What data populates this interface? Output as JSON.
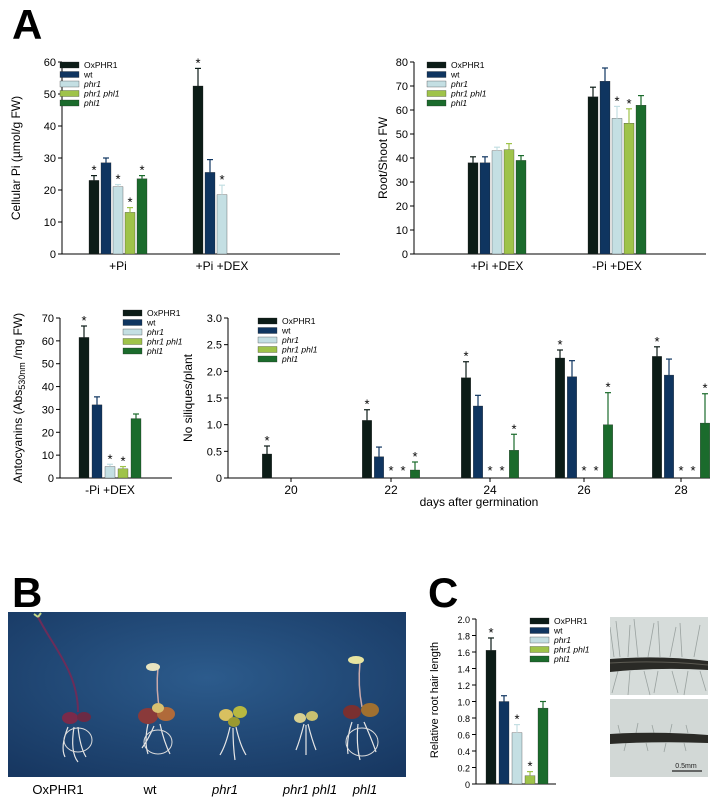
{
  "panels": {
    "a": "A",
    "b": "B",
    "c": "C"
  },
  "colors": {
    "OxPHR1": "#0c1c17",
    "wt": "#0f3560",
    "phr1": "#c4dfe3",
    "phr1 phl1": "#9fc34a",
    "phl1": "#1b6b2c"
  },
  "legend": [
    {
      "label": "OxPHR1",
      "italic": false
    },
    {
      "label": "wt",
      "italic": false
    },
    {
      "label": "phr1",
      "italic": true
    },
    {
      "label": "phr1 phl1",
      "italic": true
    },
    {
      "label": "phl1",
      "italic": true
    }
  ],
  "significance_mark": "*",
  "chart_data": [
    {
      "type": "bar",
      "ylabel": "Cellular Pi (µmol/g FW)",
      "ylim": [
        0,
        60
      ],
      "yticks": [
        0,
        10,
        20,
        30,
        40,
        50,
        60
      ],
      "categories": [
        "+Pi",
        "+Pi +DEX"
      ],
      "series": [
        {
          "name": "OxPHR1",
          "values": [
            23,
            52.5
          ],
          "errors": [
            1.5,
            5.5
          ],
          "sig": [
            true,
            true
          ]
        },
        {
          "name": "wt",
          "values": [
            28.5,
            25.5
          ],
          "errors": [
            1.5,
            4
          ],
          "sig": [
            false,
            false
          ]
        },
        {
          "name": "phr1",
          "values": [
            21,
            18.5
          ],
          "errors": [
            0.7,
            3
          ],
          "sig": [
            true,
            true
          ]
        },
        {
          "name": "phr1 phl1",
          "values": [
            13,
            null
          ],
          "errors": [
            1.5,
            null
          ],
          "sig": [
            true,
            false
          ]
        },
        {
          "name": "phl1",
          "values": [
            23.5,
            null
          ],
          "errors": [
            1,
            null
          ],
          "sig": [
            true,
            false
          ]
        }
      ],
      "legend_position": "top-left"
    },
    {
      "type": "bar",
      "ylabel": "Root/Shoot FW",
      "ylim": [
        0,
        80
      ],
      "yticks": [
        0,
        10,
        20,
        30,
        40,
        50,
        60,
        70,
        80
      ],
      "categories": [
        "+Pi +DEX",
        "-Pi +DEX"
      ],
      "series": [
        {
          "name": "OxPHR1",
          "values": [
            38,
            65.5
          ],
          "errors": [
            2.5,
            4
          ],
          "sig": [
            false,
            false
          ]
        },
        {
          "name": "wt",
          "values": [
            38,
            72
          ],
          "errors": [
            2.5,
            5.5
          ],
          "sig": [
            false,
            false
          ]
        },
        {
          "name": "phr1",
          "values": [
            43,
            56.5
          ],
          "errors": [
            1.5,
            5
          ],
          "sig": [
            false,
            true
          ]
        },
        {
          "name": "phr1 phl1",
          "values": [
            43.5,
            54.5
          ],
          "errors": [
            2.5,
            6
          ],
          "sig": [
            false,
            true
          ]
        },
        {
          "name": "phl1",
          "values": [
            39,
            62
          ],
          "errors": [
            2,
            4
          ],
          "sig": [
            false,
            false
          ]
        }
      ],
      "legend_position": "top-left"
    },
    {
      "type": "bar",
      "ylabel": "Antocyanins (Abs530nm /mg FW)",
      "ylabel_main": "Antocyanins (Abs",
      "ylabel_sub": "530nm",
      "ylabel_end": " /mg FW)",
      "ylim": [
        0,
        70
      ],
      "yticks": [
        0,
        10,
        20,
        30,
        40,
        50,
        60,
        70
      ],
      "categories": [
        "-Pi +DEX"
      ],
      "series": [
        {
          "name": "OxPHR1",
          "values": [
            61.5
          ],
          "errors": [
            5
          ],
          "sig": [
            true
          ]
        },
        {
          "name": "wt",
          "values": [
            32
          ],
          "errors": [
            3.5
          ],
          "sig": [
            false
          ]
        },
        {
          "name": "phr1",
          "values": [
            5
          ],
          "errors": [
            1
          ],
          "sig": [
            true
          ]
        },
        {
          "name": "phr1 phl1",
          "values": [
            4
          ],
          "errors": [
            1
          ],
          "sig": [
            true
          ]
        },
        {
          "name": "phl1",
          "values": [
            26
          ],
          "errors": [
            2
          ],
          "sig": [
            false
          ]
        }
      ],
      "legend_position": "top-right"
    },
    {
      "type": "bar",
      "ylabel": "No siliques/plant",
      "xlabel": "days after germination",
      "ylim": [
        0,
        3.0
      ],
      "yticks": [
        "0",
        "0.5",
        "1.0",
        "1.5",
        "2.0",
        "2.5",
        "3.0"
      ],
      "categories": [
        "20",
        "22",
        "24",
        "26",
        "28"
      ],
      "series": [
        {
          "name": "OxPHR1",
          "values": [
            0.45,
            1.08,
            1.88,
            2.25,
            2.28
          ],
          "errors": [
            0.15,
            0.2,
            0.3,
            0.15,
            0.18
          ],
          "sig": [
            true,
            true,
            true,
            true,
            true
          ]
        },
        {
          "name": "wt",
          "values": [
            0,
            0.4,
            1.35,
            1.9,
            1.93
          ],
          "errors": [
            0,
            0.18,
            0.2,
            0.3,
            0.3
          ],
          "sig": [
            false,
            false,
            false,
            false,
            false
          ]
        },
        {
          "name": "phr1",
          "values": [
            0,
            0,
            0,
            0,
            0
          ],
          "errors": [
            0,
            0,
            0,
            0,
            0
          ],
          "sig": [
            false,
            true,
            true,
            true,
            true
          ]
        },
        {
          "name": "phr1 phl1",
          "values": [
            0,
            0,
            0,
            0,
            0
          ],
          "errors": [
            0,
            0,
            0,
            0,
            0
          ],
          "sig": [
            false,
            true,
            true,
            true,
            true
          ]
        },
        {
          "name": "phl1",
          "values": [
            0,
            0.15,
            0.52,
            1.0,
            1.03
          ],
          "errors": [
            0,
            0.15,
            0.3,
            0.6,
            0.55
          ],
          "sig": [
            false,
            true,
            true,
            true,
            true
          ]
        }
      ],
      "legend_position": "top-left"
    },
    {
      "type": "bar",
      "ylabel": "Relative root hair length",
      "ylim": [
        0,
        2.0
      ],
      "yticks": [
        "0",
        "0.2",
        "0.4",
        "0.6",
        "0.8",
        "1.0",
        "1.2",
        "1.4",
        "1.6",
        "1.8",
        "2.0"
      ],
      "categories": [
        ""
      ],
      "series": [
        {
          "name": "OxPHR1",
          "values": [
            1.62
          ],
          "errors": [
            0.15
          ],
          "sig": [
            true
          ]
        },
        {
          "name": "wt",
          "values": [
            1.0
          ],
          "errors": [
            0.07
          ],
          "sig": [
            false
          ]
        },
        {
          "name": "phr1",
          "values": [
            0.62
          ],
          "errors": [
            0.1
          ],
          "sig": [
            true
          ]
        },
        {
          "name": "phr1 phl1",
          "values": [
            0.1
          ],
          "errors": [
            0.05
          ],
          "sig": [
            true
          ]
        },
        {
          "name": "phl1",
          "values": [
            0.92
          ],
          "errors": [
            0.08
          ],
          "sig": [
            false
          ]
        }
      ],
      "legend_position": "top-right"
    }
  ],
  "panel_b_labels": [
    {
      "text": "OxPHR1",
      "italic": false
    },
    {
      "text": "wt",
      "italic": false
    },
    {
      "text": "phr1",
      "italic": true
    },
    {
      "text": "phr1 phl1",
      "italic": true
    },
    {
      "text": "phl1",
      "italic": true
    }
  ],
  "scale_bar": "0.5mm"
}
